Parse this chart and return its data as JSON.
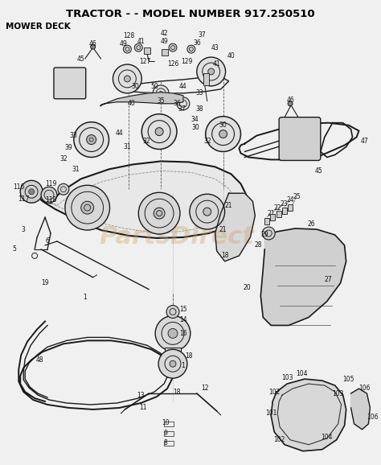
{
  "title": "TRACTOR - - MODEL NUMBER 917.250510",
  "subtitle": "MOWER DECK",
  "bg_color": "#f0f0f0",
  "title_fontsize": 9.5,
  "subtitle_fontsize": 7.5,
  "watermark": "PartsDirect",
  "watermark_color": "#c8a060",
  "watermark_alpha": 0.35,
  "col": "#1a1a1a",
  "col2": "#333333"
}
